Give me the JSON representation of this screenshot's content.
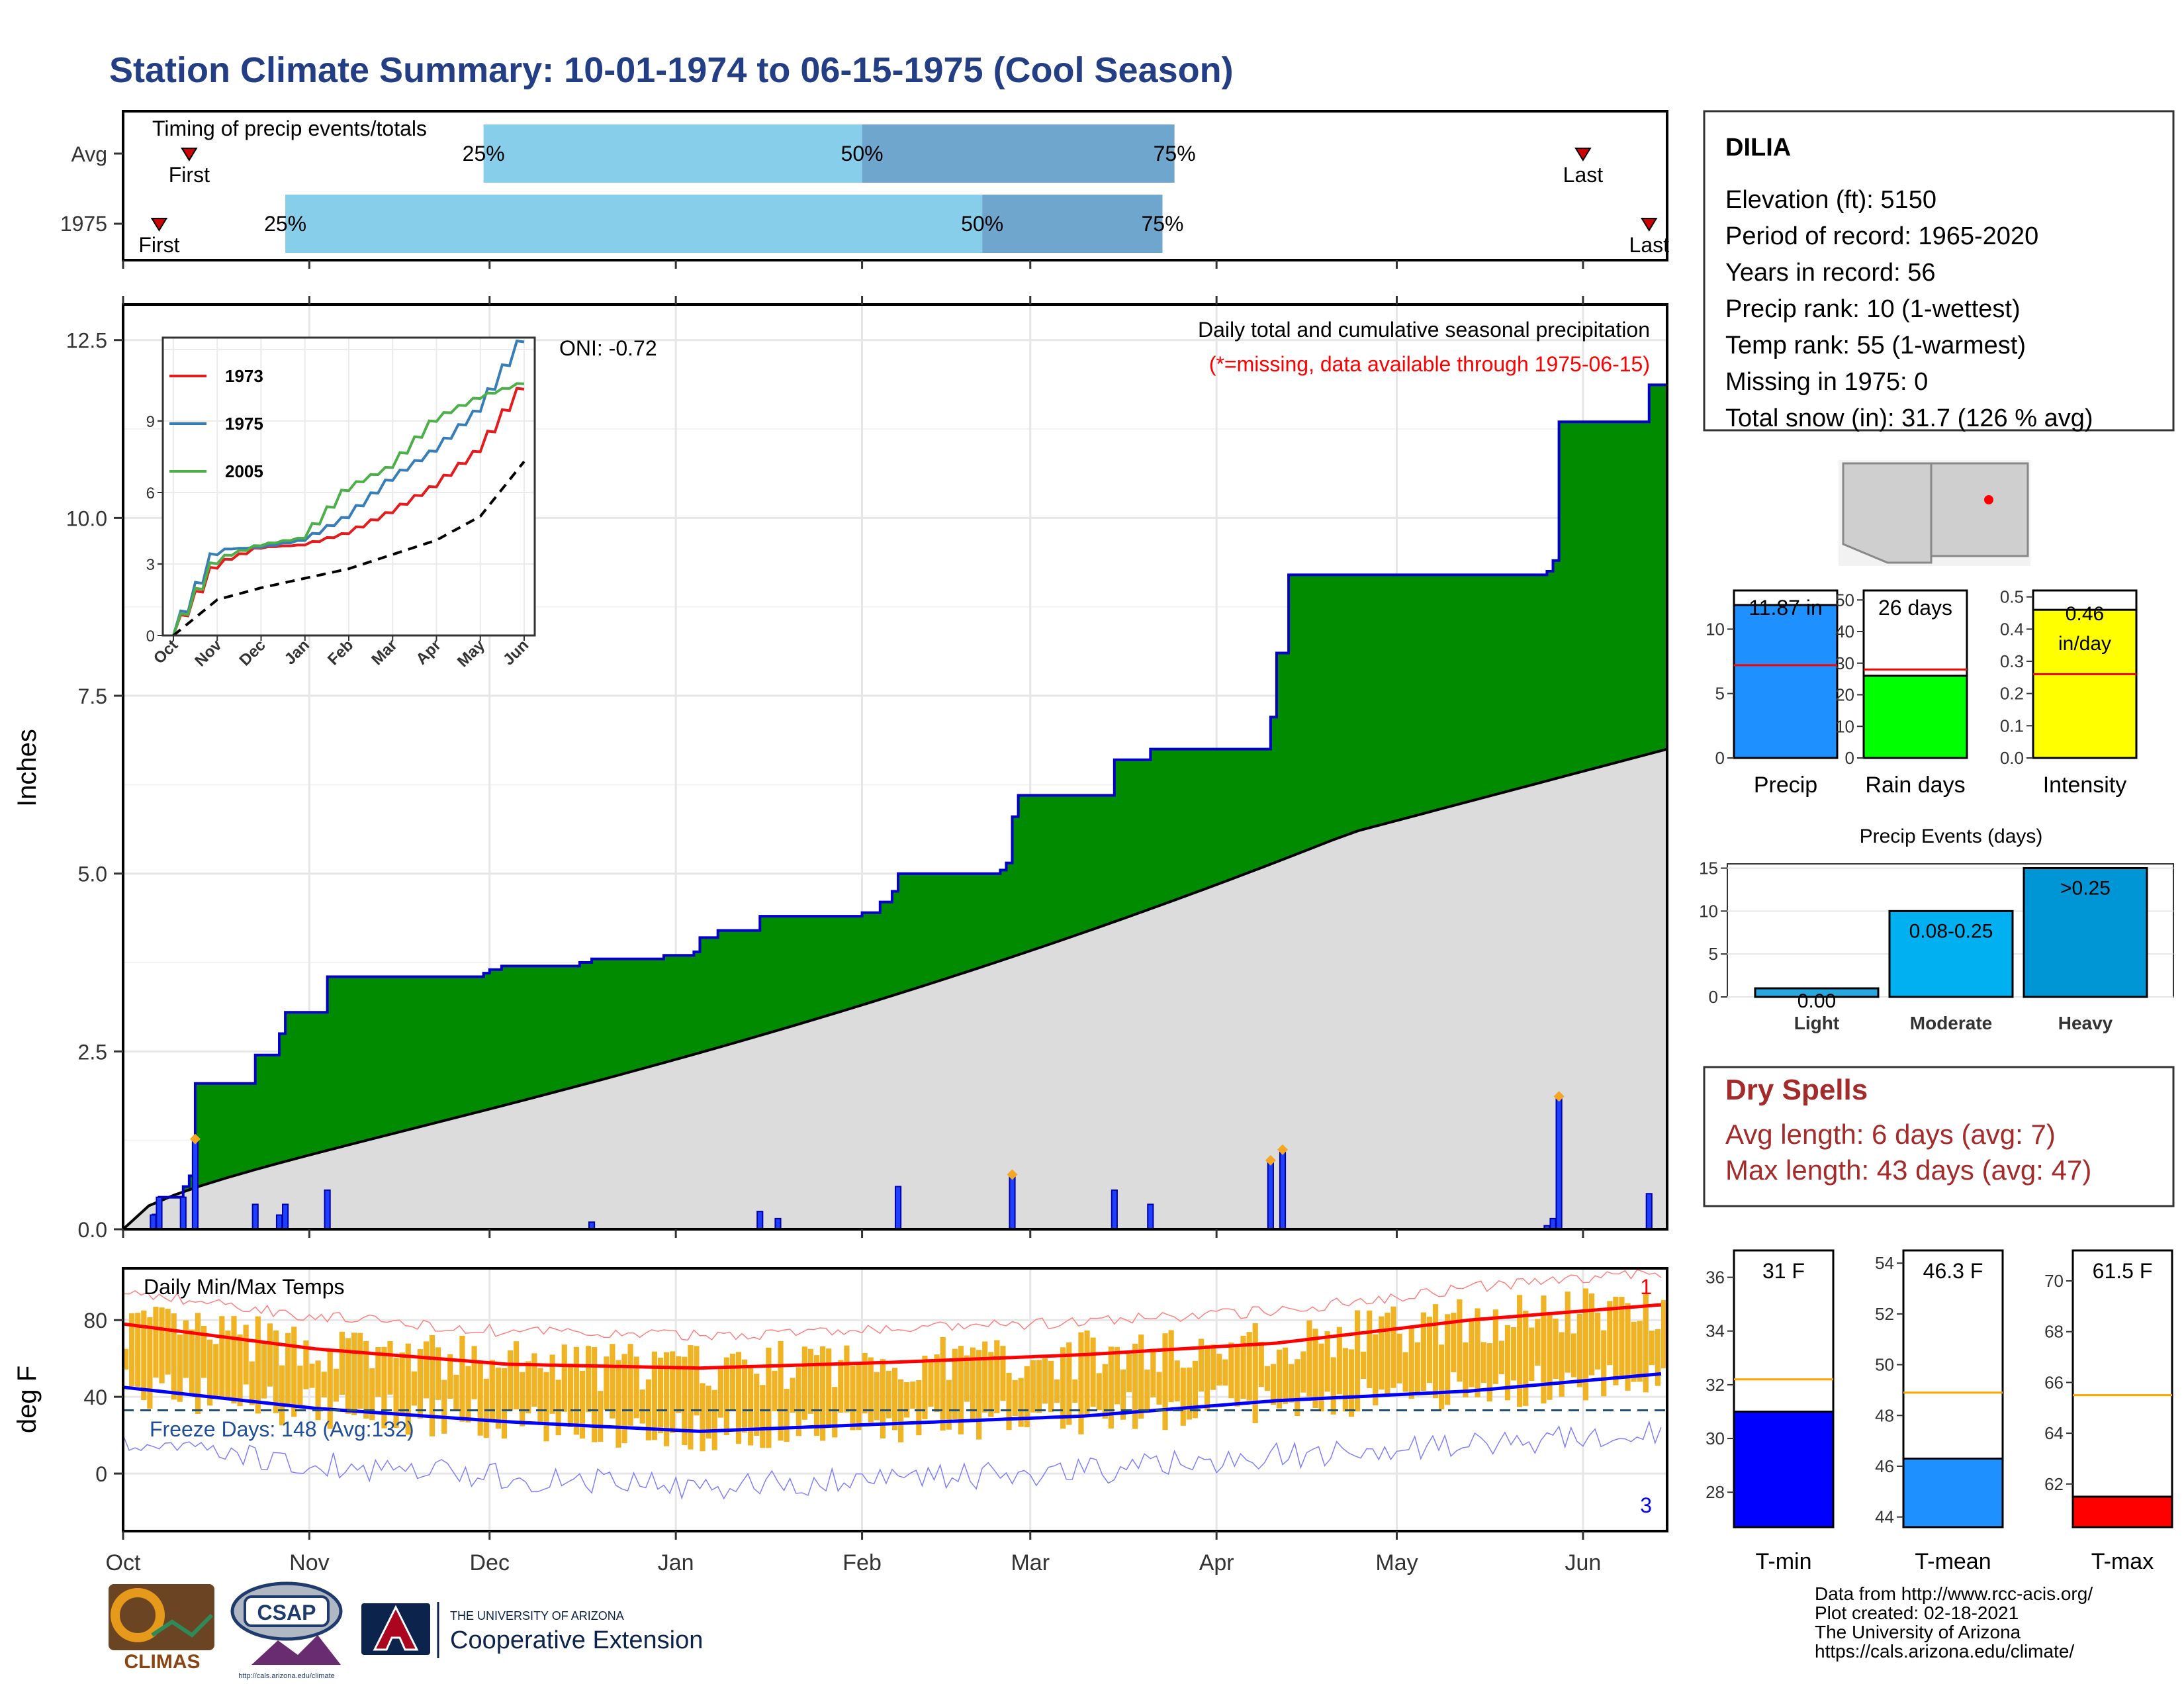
{
  "title": "Station Climate Summary: 10-01-1974 to 06-15-1975 (Cool Season)",
  "timing": {
    "header": "Timing of precip events/totals",
    "rows": [
      {
        "label": "Avg",
        "first_label": "First",
        "last_label": "Last",
        "p25": "25%",
        "p50": "50%",
        "p75": "75%"
      },
      {
        "label": "1975",
        "first_label": "First",
        "last_label": "Last",
        "p25": "25%",
        "p50": "50%",
        "p75": "75%"
      }
    ]
  },
  "station": {
    "name": "DILIA",
    "lines": [
      "Elevation (ft): 5150",
      "Period of record: 1965-2020",
      "Years in record: 56",
      "Precip rank: 10 (1-wettest)",
      "Temp rank: 55 (1-warmest)",
      "Missing in 1975: 0",
      "Total snow (in): 31.7 (126 % avg)"
    ]
  },
  "precip_panel": {
    "ylabel": "Inches",
    "oni": "ONI: -0.72",
    "title_line1": "Daily total and cumulative seasonal precipitation",
    "title_line2": "(*=missing, data available through 1975-06-15)",
    "y_ticks": [
      "0.0",
      "2.5",
      "5.0",
      "7.5",
      "10.0",
      "12.5"
    ],
    "inset_y_ticks": [
      "0",
      "3",
      "6",
      "9"
    ],
    "inset_x_ticks": [
      "Oct",
      "Nov",
      "Dec",
      "Jan",
      "Feb",
      "Mar",
      "Apr",
      "May",
      "Jun"
    ],
    "inset_legend": [
      "1973",
      "1975",
      "2005"
    ]
  },
  "temp_panel": {
    "ylabel": "deg F",
    "header": "Daily Min/Max Temps",
    "freeze": "Freeze Days: 148 (Avg:132)",
    "y_ticks": [
      "0",
      "40",
      "80"
    ],
    "count_top": "1",
    "count_bottom": "3"
  },
  "x_ticks": [
    "Oct",
    "Nov",
    "Dec",
    "Jan",
    "Feb",
    "Mar",
    "Apr",
    "May",
    "Jun"
  ],
  "mini_bars": [
    {
      "value_label": "11.87 in",
      "xlabel": "Precip",
      "ticks": [
        "0",
        "5",
        "10"
      ]
    },
    {
      "value_label": "26 days",
      "xlabel": "Rain days",
      "ticks": [
        "0",
        "10",
        "20",
        "30",
        "40",
        "50"
      ]
    },
    {
      "value_label_1": "0.46",
      "value_label_2": "in/day",
      "xlabel": "Intensity",
      "ticks": [
        "0.0",
        "0.1",
        "0.2",
        "0.3",
        "0.4",
        "0.5"
      ]
    }
  ],
  "events": {
    "title": "Precip Events (days)",
    "categories": [
      "Light",
      "Moderate",
      "Heavy"
    ],
    "labels": [
      "0.00",
      "0.08-0.25",
      ">0.25"
    ],
    "ticks": [
      "0",
      "5",
      "10",
      "15"
    ]
  },
  "dry_spells": {
    "title": "Dry Spells",
    "avg": "Avg length: 6 days (avg: 7)",
    "max": "Max length: 43 days (avg: 47)"
  },
  "temp_bars": [
    {
      "value_label": "31 F",
      "xlabel": "T-min",
      "ticks": [
        "28",
        "30",
        "32",
        "34",
        "36"
      ]
    },
    {
      "value_label": "46.3 F",
      "xlabel": "T-mean",
      "ticks": [
        "44",
        "46",
        "48",
        "50",
        "52",
        "54"
      ]
    },
    {
      "value_label": "61.5 F",
      "xlabel": "T-max",
      "ticks": [
        "62",
        "64",
        "66",
        "68",
        "70"
      ]
    }
  ],
  "credits": [
    "Data from http://www.rcc-acis.org/",
    "Plot created: 02-18-2021",
    "The University of Arizona",
    "https://cals.arizona.edu/climate/"
  ],
  "logos": {
    "climas": "CLIMAS",
    "csap": "CSAP",
    "csap_url": "http://cals.arizona.edu/climate",
    "ua_line1": "THE UNIVERSITY OF ARIZONA",
    "ua_line2": "Cooperative Extension"
  },
  "colors": {
    "title": "#233E85",
    "green": "#008B00",
    "blue": "#0000FF",
    "gray": "#DCDCDC",
    "lightblue": "#87CEEB",
    "midblue": "#6FA6CD",
    "orange": "#F0B323",
    "red": "#FF0000",
    "yellow": "#FFFF00",
    "lime": "#00FF00",
    "dodger": "#1E90FF",
    "darkred": "#A52A2A"
  },
  "chart_data": [
    {
      "type": "area",
      "name": "cumulative_precip",
      "x_range": [
        "1974-10-01",
        "1975-06-15"
      ],
      "ylim": [
        0,
        13
      ],
      "cumulative_1975": [
        {
          "date": "1974-10-01",
          "value": 0.0
        },
        {
          "date": "1974-10-06",
          "value": 0.2
        },
        {
          "date": "1974-10-07",
          "value": 0.45
        },
        {
          "date": "1974-10-11",
          "value": 0.6
        },
        {
          "date": "1974-10-12",
          "value": 0.75
        },
        {
          "date": "1974-10-13",
          "value": 2.05
        },
        {
          "date": "1974-10-23",
          "value": 2.45
        },
        {
          "date": "1974-10-27",
          "value": 2.75
        },
        {
          "date": "1974-10-28",
          "value": 3.05
        },
        {
          "date": "1974-11-04",
          "value": 3.55
        },
        {
          "date": "1974-11-30",
          "value": 3.6
        },
        {
          "date": "1974-12-01",
          "value": 3.65
        },
        {
          "date": "1974-12-03",
          "value": 3.7
        },
        {
          "date": "1974-12-16",
          "value": 3.75
        },
        {
          "date": "1974-12-18",
          "value": 3.8
        },
        {
          "date": "1974-12-30",
          "value": 3.85
        },
        {
          "date": "1975-01-04",
          "value": 3.9
        },
        {
          "date": "1975-01-05",
          "value": 4.1
        },
        {
          "date": "1975-01-08",
          "value": 4.2
        },
        {
          "date": "1975-01-15",
          "value": 4.4
        },
        {
          "date": "1975-02-01",
          "value": 4.45
        },
        {
          "date": "1975-02-04",
          "value": 4.6
        },
        {
          "date": "1975-02-06",
          "value": 4.75
        },
        {
          "date": "1975-02-07",
          "value": 5.0
        },
        {
          "date": "1975-02-24",
          "value": 5.05
        },
        {
          "date": "1975-02-25",
          "value": 5.15
        },
        {
          "date": "1975-02-26",
          "value": 5.8
        },
        {
          "date": "1975-02-27",
          "value": 6.1
        },
        {
          "date": "1975-03-15",
          "value": 6.6
        },
        {
          "date": "1975-03-21",
          "value": 6.75
        },
        {
          "date": "1975-04-10",
          "value": 7.2
        },
        {
          "date": "1975-04-11",
          "value": 8.1
        },
        {
          "date": "1975-04-13",
          "value": 9.2
        },
        {
          "date": "1975-05-26",
          "value": 9.25
        },
        {
          "date": "1975-05-27",
          "value": 9.4
        },
        {
          "date": "1975-05-28",
          "value": 11.35
        },
        {
          "date": "1975-06-12",
          "value": 11.87
        },
        {
          "date": "1975-06-15",
          "value": 11.87
        }
      ],
      "cumulative_avg_end": 6.75,
      "daily_totals": [
        {
          "date": "1974-10-06",
          "value": 0.2
        },
        {
          "date": "1974-10-07",
          "value": 0.45
        },
        {
          "date": "1974-10-11",
          "value": 0.45
        },
        {
          "date": "1974-10-13",
          "value": 1.25
        },
        {
          "date": "1974-10-23",
          "value": 0.35
        },
        {
          "date": "1974-10-27",
          "value": 0.2
        },
        {
          "date": "1974-10-28",
          "value": 0.35
        },
        {
          "date": "1974-11-04",
          "value": 0.55
        },
        {
          "date": "1974-12-18",
          "value": 0.1
        },
        {
          "date": "1975-01-15",
          "value": 0.25
        },
        {
          "date": "1975-01-18",
          "value": 0.15
        },
        {
          "date": "1975-02-07",
          "value": 0.6
        },
        {
          "date": "1975-02-26",
          "value": 0.75
        },
        {
          "date": "1975-03-15",
          "value": 0.55
        },
        {
          "date": "1975-03-21",
          "value": 0.35
        },
        {
          "date": "1975-04-10",
          "value": 0.95
        },
        {
          "date": "1975-04-12",
          "value": 1.1
        },
        {
          "date": "1975-05-26",
          "value": 0.05
        },
        {
          "date": "1975-05-27",
          "value": 0.15
        },
        {
          "date": "1975-05-28",
          "value": 1.85
        },
        {
          "date": "1975-06-12",
          "value": 0.5
        }
      ]
    },
    {
      "type": "bar",
      "name": "timing",
      "rows": [
        "Avg",
        "1975"
      ],
      "x_range": [
        "1974-10-01",
        "1975-06-15"
      ],
      "avg": {
        "first": "1974-10-12",
        "p25": "1974-11-30",
        "p50": "1975-02-01",
        "p75": "1975-03-25",
        "last": "1975-06-01"
      },
      "y1975": {
        "first": "1974-10-07",
        "p25": "1974-10-28",
        "p50": "1975-02-21",
        "p75": "1975-03-23",
        "last": "1975-06-12"
      }
    },
    {
      "type": "line",
      "name": "inset_cumulative",
      "x": [
        "Oct",
        "Nov",
        "Dec",
        "Jan",
        "Feb",
        "Mar",
        "Apr",
        "May",
        "Jun"
      ],
      "ylim": [
        0,
        12.5
      ],
      "series": [
        {
          "name": "1973",
          "values": [
            0,
            3.0,
            3.7,
            3.8,
            4.3,
            5.2,
            6.3,
            7.8,
            10.5
          ]
        },
        {
          "name": "1975",
          "values": [
            0,
            3.6,
            3.7,
            4.0,
            5.0,
            6.6,
            7.8,
            9.5,
            12.5
          ]
        },
        {
          "name": "2005",
          "values": [
            0,
            3.2,
            3.8,
            4.1,
            6.2,
            7.1,
            9.1,
            10.0,
            10.6
          ]
        }
      ],
      "avg_values": [
        0,
        1.5,
        2.0,
        2.4,
        2.8,
        3.4,
        4.0,
        5.0,
        7.3
      ]
    },
    {
      "type": "bar",
      "name": "temperatures",
      "x_range": [
        "1974-10-01",
        "1975-06-15"
      ],
      "ylim": [
        -30,
        107
      ],
      "freeze_line": 33,
      "avg_max_monthly": [
        78,
        65,
        57,
        55,
        58,
        62,
        68,
        80,
        88
      ],
      "avg_min_monthly": [
        45,
        34,
        27,
        22,
        26,
        30,
        38,
        43,
        52
      ]
    },
    {
      "type": "bar",
      "name": "season_summary",
      "categories": [
        "Precip",
        "Rain days",
        "Intensity"
      ],
      "values": [
        11.87,
        26,
        0.46
      ],
      "averages": [
        7.2,
        28,
        0.26
      ],
      "ylims": [
        [
          0,
          13
        ],
        [
          0,
          53
        ],
        [
          0,
          0.52
        ]
      ]
    },
    {
      "type": "bar",
      "name": "precip_events",
      "categories": [
        "Light",
        "Moderate",
        "Heavy"
      ],
      "values": [
        1,
        10,
        15
      ],
      "ylim": [
        0,
        15.5
      ]
    },
    {
      "type": "bar",
      "name": "temp_summary",
      "categories": [
        "T-min",
        "T-mean",
        "T-max"
      ],
      "values": [
        31,
        46.3,
        61.5
      ],
      "averages": [
        32.2,
        48.9,
        65.5
      ],
      "ylims": [
        [
          26.7,
          37
        ],
        [
          43.6,
          54.5
        ],
        [
          60.3,
          71.2
        ]
      ]
    }
  ]
}
